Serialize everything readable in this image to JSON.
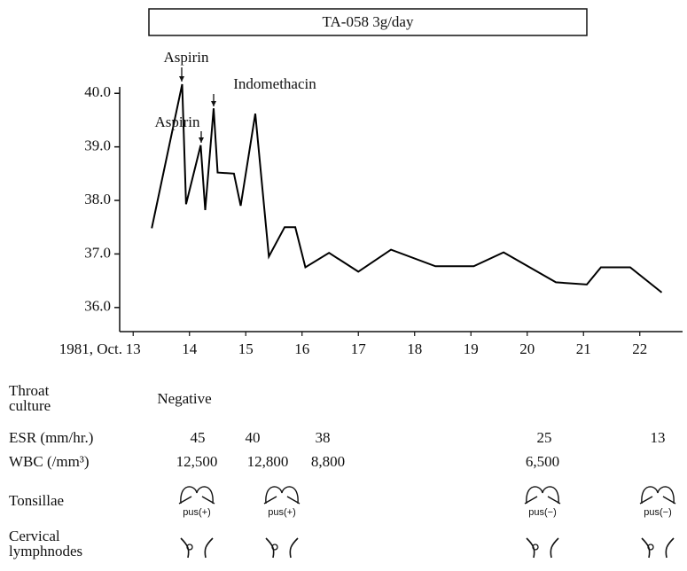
{
  "chart_data": {
    "type": "line",
    "title": "TA-058 3g/day",
    "x_label": "1981, Oct.",
    "x": [
      13.33,
      13.87,
      13.94,
      14.2,
      14.28,
      14.43,
      14.5,
      14.79,
      14.91,
      15.17,
      15.41,
      15.69,
      15.88,
      16.06,
      16.48,
      17.0,
      17.58,
      18.37,
      19.05,
      19.58,
      20.51,
      21.06,
      21.31,
      21.83,
      22.39
    ],
    "values": [
      37.48,
      40.17,
      37.93,
      39.03,
      37.82,
      39.72,
      38.52,
      38.5,
      37.9,
      39.62,
      36.95,
      37.5,
      37.5,
      36.75,
      37.02,
      36.67,
      37.08,
      36.77,
      36.77,
      37.03,
      36.47,
      36.43,
      36.75,
      36.75,
      36.28
    ],
    "color": "#000000",
    "xlim": [
      12.76,
      22.76
    ],
    "ylim": [
      35.55,
      40.12
    ],
    "xticks": [
      13,
      14,
      15,
      16,
      17,
      18,
      19,
      20,
      21,
      22
    ],
    "yticks": [
      {
        "value": 36,
        "label": "36.0"
      },
      {
        "value": 37,
        "label": "37.0"
      },
      {
        "value": 38,
        "label": "38.0"
      },
      {
        "value": 39,
        "label": "39.0"
      },
      {
        "value": 40,
        "label": "40.0"
      }
    ],
    "annotations": [
      "Aspirin",
      "Indomethacin",
      "Aspirin"
    ]
  },
  "table": {
    "rows": [
      {
        "label": "Throat culture",
        "cells": [
          "Negative"
        ]
      },
      {
        "label": "ESR (mm/hr.)",
        "cells": [
          "45",
          "40",
          "38",
          "25",
          "13"
        ]
      },
      {
        "label": "WBC (/mm³)",
        "cells": [
          "12,500",
          "12,800",
          "8,800",
          "6,500"
        ]
      },
      {
        "label": "Tonsillae",
        "cells": [
          "pus(+)",
          "pus(+)",
          "pus(−)",
          "pus(−)"
        ]
      },
      {
        "label": "Cervical lymphnodes",
        "cells": []
      }
    ]
  }
}
